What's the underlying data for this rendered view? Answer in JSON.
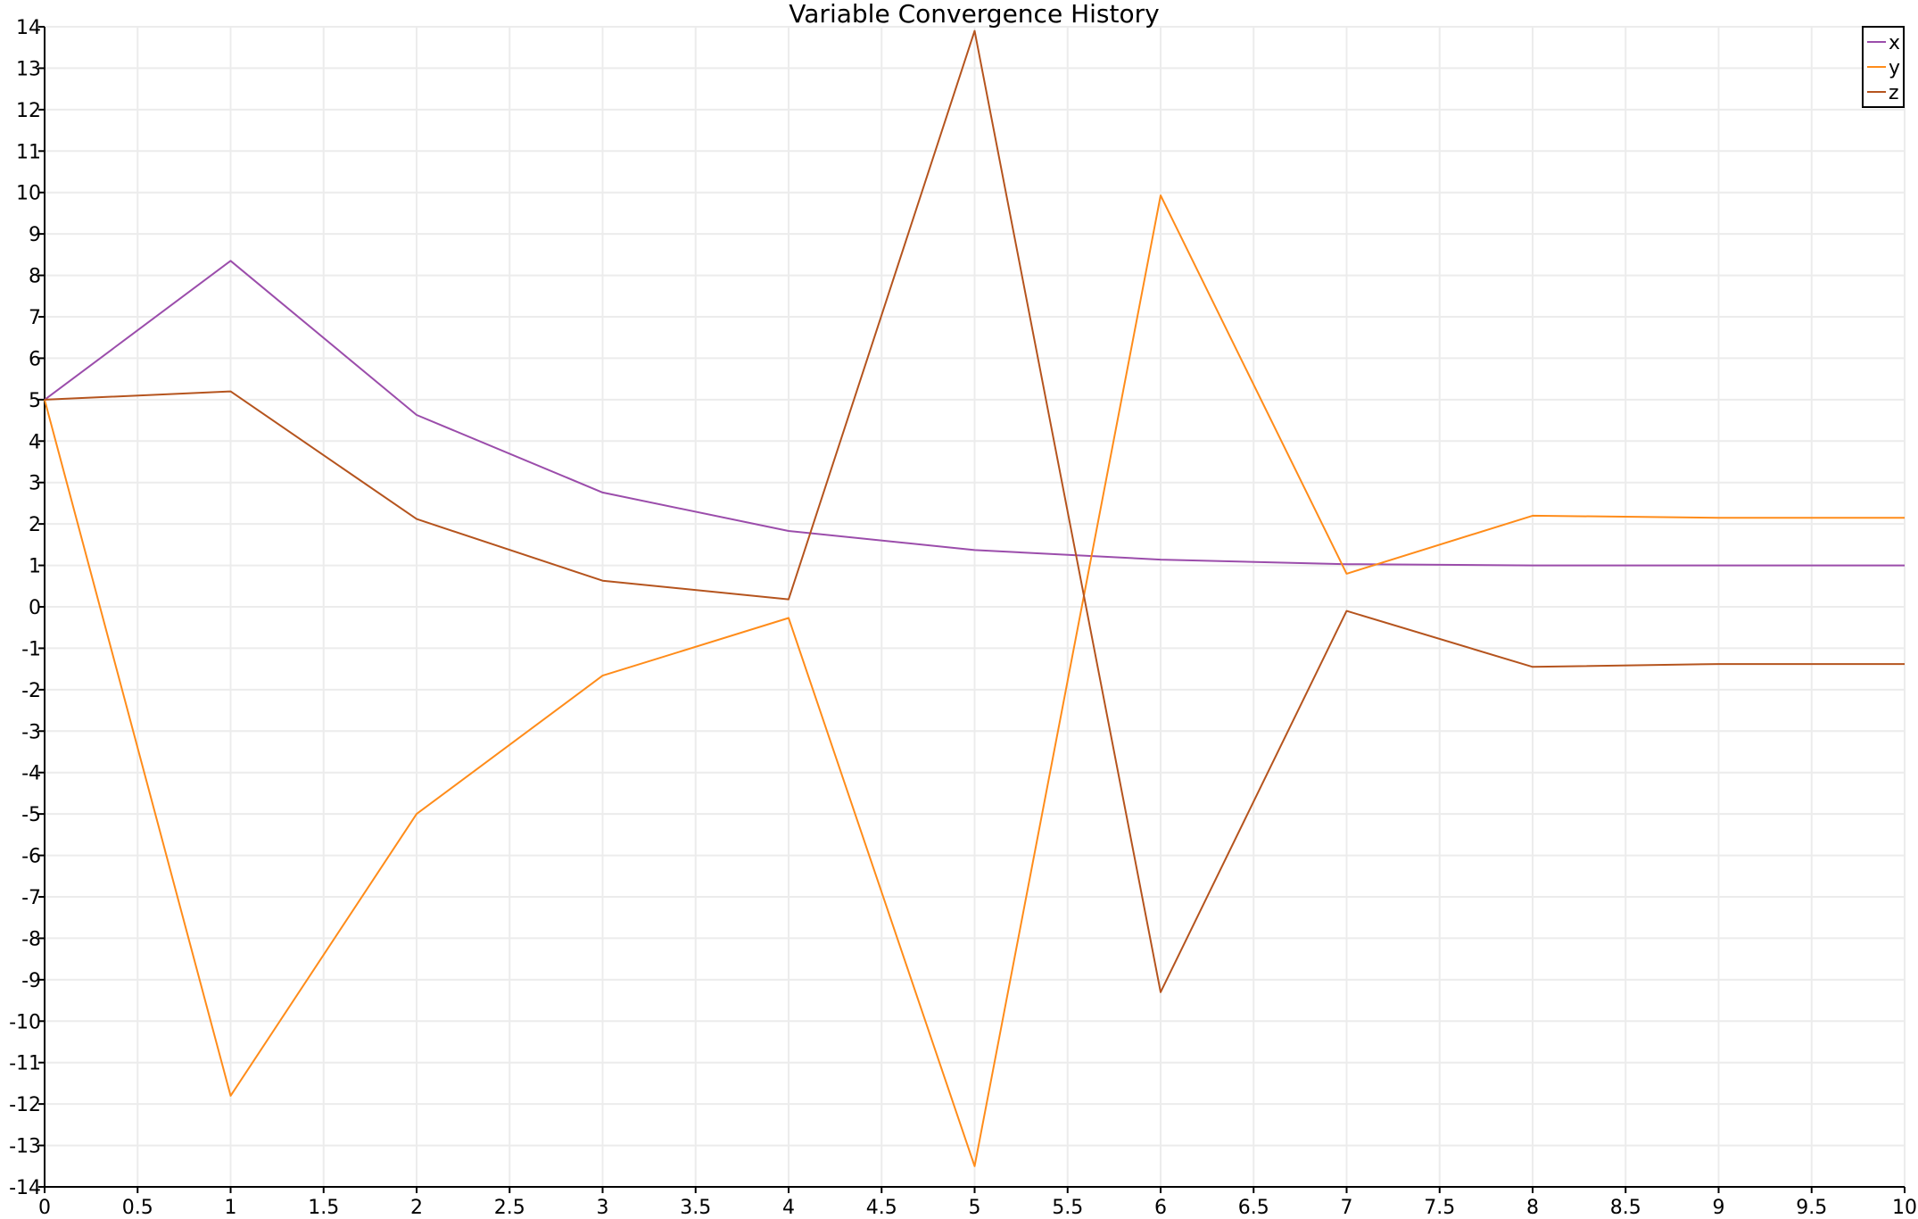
{
  "chart_data": {
    "type": "line",
    "title": "Variable Convergence History",
    "xlabel": "",
    "ylabel": "",
    "xlim": [
      0,
      10
    ],
    "ylim": [
      -14,
      14
    ],
    "x_ticks": [
      "0",
      "0.5",
      "1",
      "1.5",
      "2",
      "2.5",
      "3",
      "3.5",
      "4",
      "4.5",
      "5",
      "5.5",
      "6",
      "6.5",
      "7",
      "7.5",
      "8",
      "8.5",
      "9",
      "9.5",
      "10"
    ],
    "y_ticks": [
      "-14",
      "-13",
      "-12",
      "-11",
      "-10",
      "-9",
      "-8",
      "-7",
      "-6",
      "-5",
      "-4",
      "-3",
      "-2",
      "-1",
      "0",
      "1",
      "2",
      "3",
      "4",
      "5",
      "6",
      "7",
      "8",
      "9",
      "10",
      "11",
      "12",
      "13",
      "14"
    ],
    "grid": true,
    "legend_position": "top-right",
    "x": [
      0,
      1,
      2,
      3,
      4,
      5,
      6,
      7,
      8,
      9,
      10
    ],
    "series": [
      {
        "name": "x",
        "color": "#9b4dab",
        "values": [
          5,
          8.35,
          4.63,
          2.76,
          1.83,
          1.37,
          1.14,
          1.03,
          1.0,
          1.0,
          1.0
        ]
      },
      {
        "name": "y",
        "color": "#ff8c1a",
        "values": [
          5,
          -11.8,
          -5.0,
          -1.66,
          -0.27,
          -13.5,
          9.93,
          0.8,
          2.2,
          2.15,
          2.15
        ]
      },
      {
        "name": "z",
        "color": "#b5541e",
        "values": [
          5,
          5.2,
          2.12,
          0.63,
          0.18,
          13.9,
          -9.3,
          -0.1,
          -1.45,
          -1.38,
          -1.38
        ]
      }
    ]
  }
}
